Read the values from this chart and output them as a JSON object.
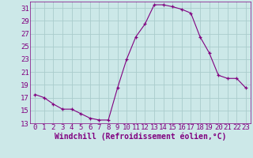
{
  "x": [
    0,
    1,
    2,
    3,
    4,
    5,
    6,
    7,
    8,
    9,
    10,
    11,
    12,
    13,
    14,
    15,
    16,
    17,
    18,
    19,
    20,
    21,
    22,
    23
  ],
  "y": [
    17.5,
    17.0,
    16.0,
    15.2,
    15.2,
    14.5,
    13.8,
    13.5,
    13.5,
    18.5,
    23.0,
    26.5,
    28.5,
    31.5,
    31.5,
    31.2,
    30.8,
    30.2,
    26.5,
    24.0,
    20.5,
    20.0,
    20.0,
    18.5
  ],
  "line_color": "#800080",
  "marker": "+",
  "marker_color": "#800080",
  "bg_color": "#cce8e8",
  "grid_color": "#aacccc",
  "xlabel": "Windchill (Refroidissement éolien,°C)",
  "xlabel_color": "#800080",
  "tick_color": "#800080",
  "spine_color": "#800080",
  "ylim": [
    13,
    32
  ],
  "xlim": [
    -0.5,
    23.5
  ],
  "yticks": [
    13,
    15,
    17,
    19,
    21,
    23,
    25,
    27,
    29,
    31
  ],
  "xticks": [
    0,
    1,
    2,
    3,
    4,
    5,
    6,
    7,
    8,
    9,
    10,
    11,
    12,
    13,
    14,
    15,
    16,
    17,
    18,
    19,
    20,
    21,
    22,
    23
  ],
  "font_size": 6.5,
  "xlabel_fontsize": 7
}
